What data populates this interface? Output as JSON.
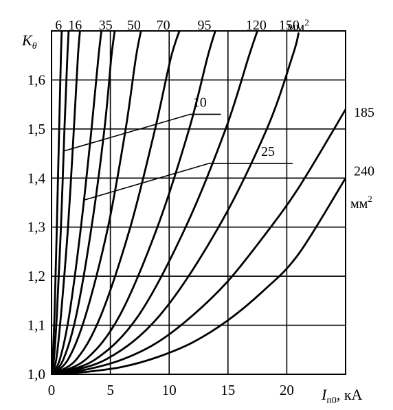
{
  "chart_data": {
    "type": "line",
    "y_symbol": "K",
    "y_symbol_sub": "θ",
    "x_symbol": "I",
    "x_symbol_sub": "п0",
    "x_unit": ", кА",
    "xlim": [
      0,
      25
    ],
    "ylim": [
      1.0,
      1.7
    ],
    "x_ticks": [
      0,
      5,
      10,
      15,
      20
    ],
    "x_tick_labels": [
      "0",
      "5",
      "10",
      "15",
      "20"
    ],
    "y_ticks": [
      1.0,
      1.1,
      1.2,
      1.3,
      1.4,
      1.5,
      1.6
    ],
    "y_tick_labels": [
      "1,0",
      "1,1",
      "1,2",
      "1,3",
      "1,4",
      "1,5",
      "1,6"
    ],
    "grid": true,
    "unit_mm": "мм",
    "unit_sup": "2",
    "series": [
      {
        "name": "6",
        "x": [
          0,
          0.1,
          0.25,
          0.45,
          0.65,
          0.8,
          0.9
        ],
        "y": [
          1.0,
          1.03,
          1.12,
          1.3,
          1.5,
          1.65,
          1.72
        ]
      },
      {
        "name": "10",
        "x": [
          0,
          0.2,
          0.45,
          0.8,
          1.1,
          1.35,
          1.5
        ],
        "y": [
          1.0,
          1.03,
          1.12,
          1.3,
          1.5,
          1.65,
          1.72
        ]
      },
      {
        "name": "16",
        "x": [
          0,
          0.4,
          0.8,
          1.4,
          1.9,
          2.25,
          2.5
        ],
        "y": [
          1.0,
          1.03,
          1.12,
          1.3,
          1.5,
          1.65,
          1.72
        ]
      },
      {
        "name": "25",
        "x": [
          0,
          0.7,
          1.5,
          2.5,
          3.4,
          4.0,
          4.35
        ],
        "y": [
          1.0,
          1.03,
          1.12,
          1.3,
          1.5,
          1.65,
          1.72
        ]
      },
      {
        "name": "35",
        "x": [
          0,
          1.0,
          2.1,
          3.4,
          4.5,
          5.1,
          5.5
        ],
        "y": [
          1.0,
          1.03,
          1.12,
          1.3,
          1.5,
          1.65,
          1.72
        ]
      },
      {
        "name": "50",
        "x": [
          0,
          1.4,
          2.9,
          4.8,
          6.3,
          7.2,
          7.8
        ],
        "y": [
          1.0,
          1.03,
          1.12,
          1.3,
          1.5,
          1.65,
          1.72
        ]
      },
      {
        "name": "70",
        "x": [
          0,
          2.1,
          4.2,
          6.7,
          8.8,
          10.2,
          11.2
        ],
        "y": [
          1.0,
          1.03,
          1.12,
          1.3,
          1.5,
          1.65,
          1.72
        ]
      },
      {
        "name": "95",
        "x": [
          0,
          2.9,
          5.8,
          9.0,
          11.7,
          13.3,
          14.2
        ],
        "y": [
          1.0,
          1.03,
          1.12,
          1.3,
          1.5,
          1.65,
          1.72
        ]
      },
      {
        "name": "120",
        "x": [
          0,
          3.7,
          7.4,
          11.4,
          14.8,
          16.8,
          17.5
        ],
        "y": [
          1.0,
          1.03,
          1.12,
          1.3,
          1.5,
          1.65,
          1.7
        ]
      },
      {
        "name": "150",
        "x": [
          0,
          4.6,
          9.2,
          14.2,
          18.3,
          20.5,
          21.0
        ],
        "y": [
          1.0,
          1.03,
          1.12,
          1.3,
          1.5,
          1.65,
          1.695
        ]
      },
      {
        "name": "185",
        "x": [
          0,
          3,
          6,
          9,
          12,
          15,
          18,
          21,
          25
        ],
        "y": [
          1.0,
          1.01,
          1.03,
          1.065,
          1.12,
          1.19,
          1.28,
          1.38,
          1.54
        ]
      },
      {
        "name": "240",
        "x": [
          0,
          3,
          6,
          9,
          12,
          15,
          18,
          21,
          25
        ],
        "y": [
          1.0,
          1.005,
          1.015,
          1.035,
          1.065,
          1.11,
          1.17,
          1.245,
          1.4
        ]
      }
    ],
    "top_labels": [
      {
        "text": "6",
        "x": 0.6
      },
      {
        "text": "16",
        "x": 2.0
      },
      {
        "text": "35",
        "x": 4.6
      },
      {
        "text": "50",
        "x": 7.0
      },
      {
        "text": "70",
        "x": 9.5
      },
      {
        "text": "95",
        "x": 13.0
      },
      {
        "text": "120",
        "x": 17.4
      },
      {
        "text": "150",
        "x": 20.2
      }
    ],
    "annotations": [
      {
        "text": "10",
        "lx": 12.6,
        "ly": 1.545
      },
      {
        "text": "25",
        "lx": 18.4,
        "ly": 1.445
      },
      {
        "text": "185",
        "lx": 25.7,
        "ly": 1.525
      },
      {
        "text": "240",
        "lx": 25.7,
        "ly": 1.405
      }
    ]
  }
}
